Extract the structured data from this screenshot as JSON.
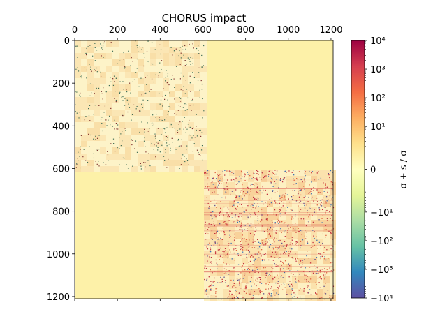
{
  "chart_data": {
    "type": "heatmap",
    "title": "CHORUS impact",
    "colorbar_label": "σ + s / σ",
    "colormap": "Spectral_r",
    "background_color": "#fdf1a8",
    "x_axis": {
      "range": [
        0,
        1210
      ],
      "position": "top",
      "ticks": [
        0,
        200,
        400,
        600,
        800,
        1000,
        1200
      ]
    },
    "y_axis": {
      "range": [
        0,
        1210
      ],
      "inverted": true,
      "ticks": [
        0,
        200,
        400,
        600,
        800,
        1000,
        1200
      ]
    },
    "blocks": [
      {
        "name": "upper-left",
        "x": [
          0,
          605
        ],
        "y": [
          0,
          605
        ],
        "pattern": "sparse dark points on light checker",
        "dominant": "low positive"
      },
      {
        "name": "lower-right",
        "x": [
          605,
          1210
        ],
        "y": [
          605,
          1210
        ],
        "pattern": "dense red/blue points on checker grid",
        "dominant": "high positive and negative"
      },
      {
        "name": "off-diagonal",
        "x": [
          605,
          1210
        ],
        "y": [
          0,
          605
        ],
        "pattern": "uniform",
        "dominant": "zero"
      },
      {
        "name": "off-diagonal",
        "x": [
          0,
          605
        ],
        "y": [
          605,
          1210
        ],
        "pattern": "uniform",
        "dominant": "zero"
      }
    ],
    "colorbar": {
      "scale": "symlog",
      "range": [
        -10000,
        10000
      ],
      "ticks": [
        {
          "value": 10000,
          "label": "10⁴"
        },
        {
          "value": 1000,
          "label": "10³"
        },
        {
          "value": 100,
          "label": "10²"
        },
        {
          "value": 10,
          "label": "10¹"
        },
        {
          "value": 0,
          "label": "0"
        },
        {
          "value": -10,
          "label": "−10¹"
        },
        {
          "value": -100,
          "label": "−10²"
        },
        {
          "value": -1000,
          "label": "−10³"
        },
        {
          "value": -10000,
          "label": "−10⁴"
        }
      ]
    }
  }
}
